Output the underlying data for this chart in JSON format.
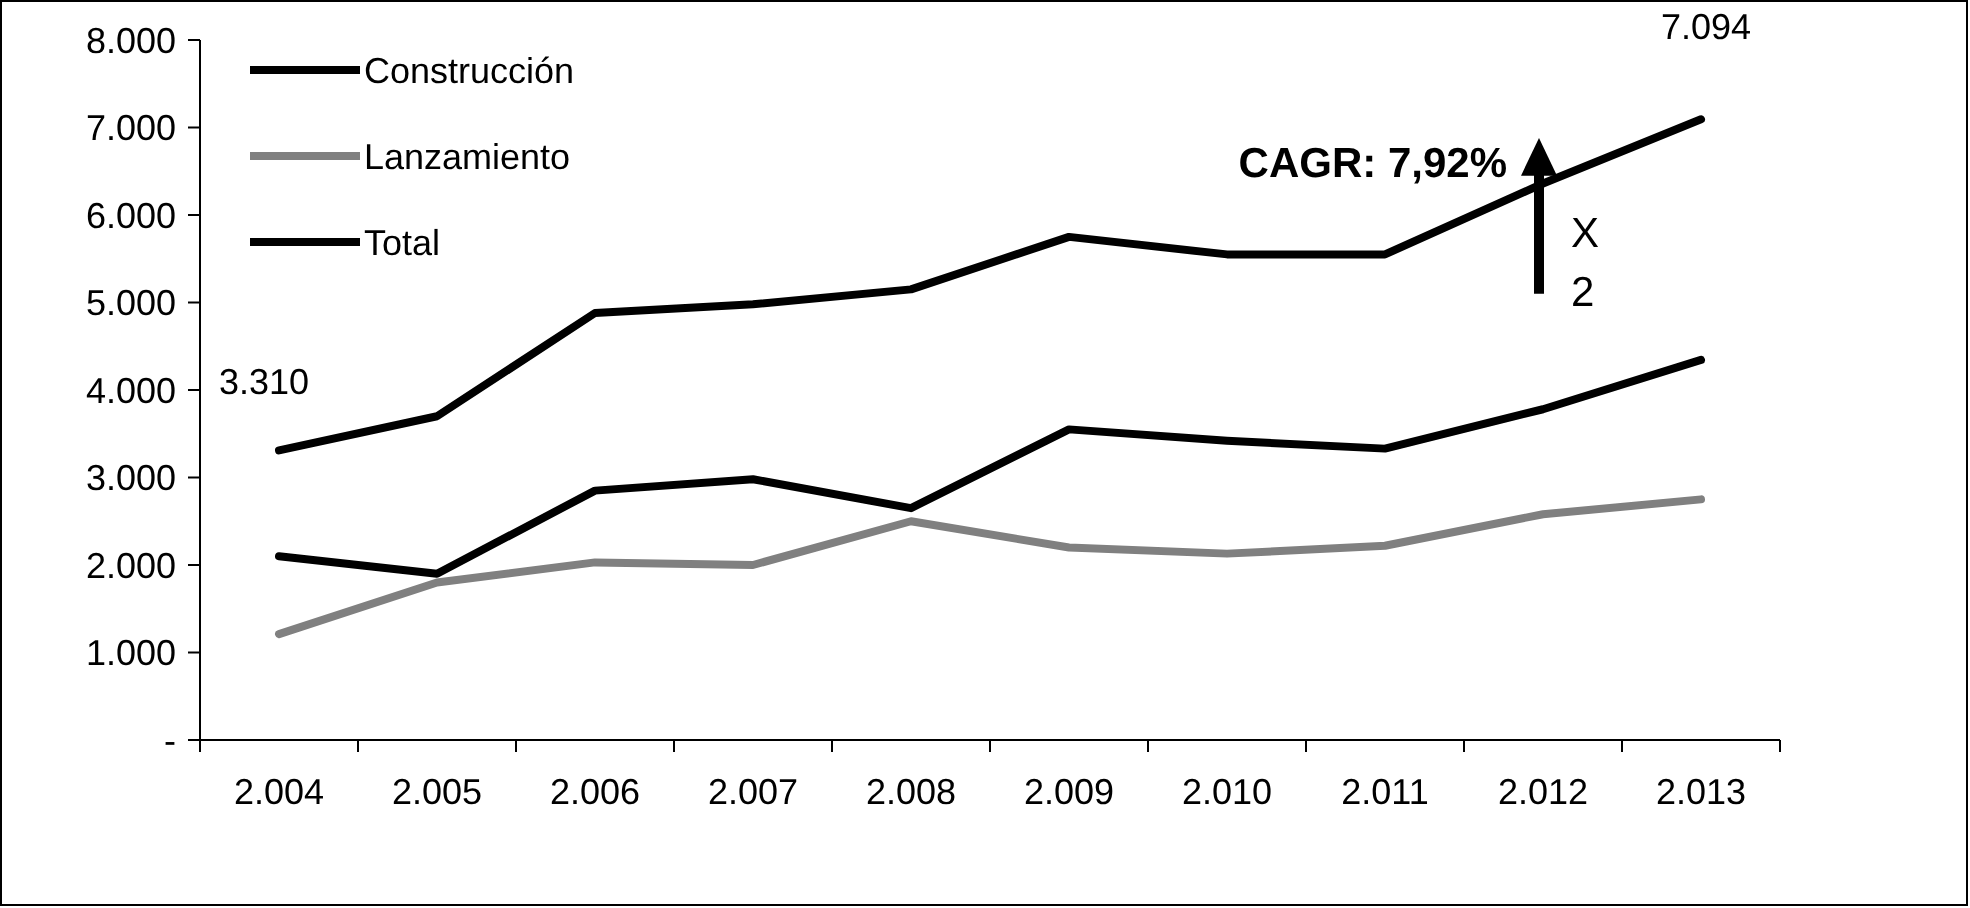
{
  "chart_data": {
    "type": "line",
    "categories": [
      "2.004",
      "2.005",
      "2.006",
      "2.007",
      "2.008",
      "2.009",
      "2.010",
      "2.011",
      "2.012",
      "2.013"
    ],
    "series": [
      {
        "name": "Construcción",
        "color": "#000000",
        "values": [
          2100,
          1900,
          2850,
          2980,
          2650,
          3550,
          3420,
          3330,
          3780,
          4344
        ]
      },
      {
        "name": "Lanzamiento",
        "color": "#808080",
        "values": [
          1210,
          1800,
          2030,
          2000,
          2500,
          2200,
          2130,
          2220,
          2580,
          2750
        ]
      },
      {
        "name": "Total",
        "color": "#000000",
        "values": [
          3310,
          3700,
          4880,
          4980,
          5150,
          5750,
          5550,
          5550,
          6360,
          7094
        ]
      }
    ],
    "ylim": [
      0,
      8000
    ],
    "yticks": [
      {
        "value": 0,
        "label": "-"
      },
      {
        "value": 1000,
        "label": "1.000"
      },
      {
        "value": 2000,
        "label": "2.000"
      },
      {
        "value": 3000,
        "label": "3.000"
      },
      {
        "value": 4000,
        "label": "4.000"
      },
      {
        "value": 5000,
        "label": "5.000"
      },
      {
        "value": 6000,
        "label": "6.000"
      },
      {
        "value": 7000,
        "label": "7.000"
      },
      {
        "value": 8000,
        "label": "8.000"
      }
    ],
    "annotations": [
      {
        "text": "3.310",
        "x": "2.004",
        "y": 3310
      },
      {
        "text": "7.094",
        "x": "2.013",
        "y": 7094
      },
      "CAGR: 7,92%",
      "X 2"
    ],
    "legend": "top left",
    "grid": false,
    "marker": "none",
    "line_style": "solid"
  }
}
